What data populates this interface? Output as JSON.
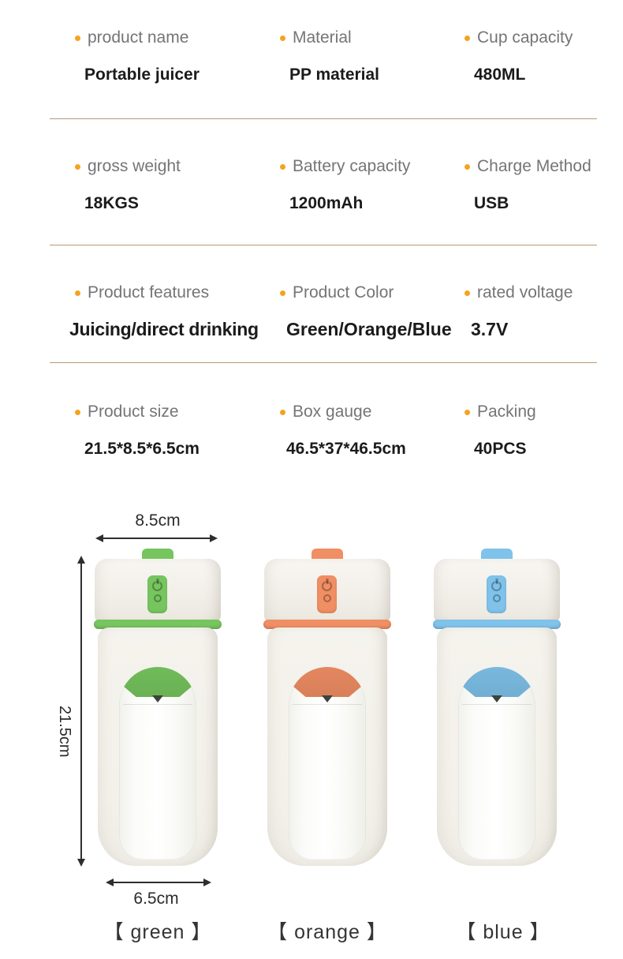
{
  "colors": {
    "bullet": "#f5a31f",
    "divider": "#b99878",
    "label_text": "#757575",
    "value_text": "#1b1b1b",
    "green_accent": "#76c55e",
    "orange_accent": "#f08e64",
    "blue_accent": "#7fc2ea"
  },
  "icons": {
    "spec_bullet": "orange-dot",
    "juicer_button_top": "power-icon",
    "juicer_button_bottom": "circle-icon"
  },
  "specs": {
    "rows": [
      {
        "cells": [
          {
            "label": "product name",
            "value": "Portable juicer"
          },
          {
            "label": "Material",
            "value": "PP material"
          },
          {
            "label": "Cup capacity",
            "value": "480ML"
          }
        ]
      },
      {
        "cells": [
          {
            "label": "gross weight",
            "value": "18KGS"
          },
          {
            "label": "Battery capacity",
            "value": "1200mAh"
          },
          {
            "label": "Charge Method",
            "value": "USB"
          }
        ]
      },
      {
        "cells": [
          {
            "label": "Product features",
            "value": "Juicing/direct drinking"
          },
          {
            "label": "Product Color",
            "value": "Green/Orange/Blue"
          },
          {
            "label": "rated voltage",
            "value": "3.7V"
          }
        ]
      },
      {
        "cells": [
          {
            "label": "Product size",
            "value": "21.5*8.5*6.5cm"
          },
          {
            "label": "Box gauge",
            "value": "46.5*37*46.5cm"
          },
          {
            "label": "Packing",
            "value": "40PCS"
          }
        ]
      }
    ]
  },
  "figure": {
    "dimensions": {
      "width_top": "8.5cm",
      "height_left": "21.5cm",
      "width_bottom": "6.5cm"
    },
    "variants": [
      {
        "name": "green",
        "caption": "【 green 】",
        "accent": "#76c55e"
      },
      {
        "name": "orange",
        "caption": "【 orange 】",
        "accent": "#f08e64"
      },
      {
        "name": "blue",
        "caption": "【 blue 】",
        "accent": "#7fc2ea"
      }
    ]
  }
}
